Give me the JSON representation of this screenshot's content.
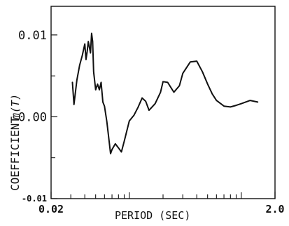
{
  "chart_data": {
    "type": "line",
    "xlabel": "PERIOD (SEC)",
    "ylabel": "COEFFICIENT",
    "ylabel_math": "m(T)",
    "x_scale": "log",
    "xlim": [
      0.02,
      2.0
    ],
    "ylim": [
      -0.01,
      0.0135
    ],
    "x_tick_labels": [
      {
        "value": 0.02,
        "label": "0.02"
      },
      {
        "value": 2.0,
        "label": "2.0"
      }
    ],
    "y_tick_labels": [
      {
        "value": 0.01,
        "label": "0.01"
      },
      {
        "value": 0.0,
        "label": "0.00"
      },
      {
        "value": -0.01,
        "label": "-0.01"
      }
    ],
    "x_minor_ticks": [
      0.03,
      0.04,
      0.05,
      0.06,
      0.07,
      0.08,
      0.09,
      0.1,
      0.2,
      0.3,
      0.4,
      0.5,
      0.6,
      0.7,
      0.8,
      0.9,
      1.0
    ],
    "y_minor_ticks": [
      0.005,
      -0.005
    ],
    "grid": false,
    "series": [
      {
        "x": [
          0.031,
          0.032,
          0.034,
          0.036,
          0.038,
          0.04,
          0.041,
          0.042,
          0.043,
          0.045,
          0.046,
          0.047,
          0.048,
          0.05,
          0.052,
          0.054,
          0.056,
          0.058,
          0.06,
          0.063,
          0.065,
          0.068,
          0.07,
          0.075,
          0.08,
          0.085,
          0.09,
          0.1,
          0.11,
          0.12,
          0.13,
          0.14,
          0.15,
          0.17,
          0.19,
          0.2,
          0.22,
          0.25,
          0.28,
          0.3,
          0.35,
          0.4,
          0.45,
          0.5,
          0.55,
          0.6,
          0.7,
          0.8,
          0.9,
          1.0,
          1.2,
          1.4
        ],
        "y": [
          0.0042,
          0.0015,
          0.0045,
          0.0063,
          0.0075,
          0.0089,
          0.007,
          0.008,
          0.0092,
          0.0078,
          0.0102,
          0.0092,
          0.0055,
          0.0033,
          0.004,
          0.0033,
          0.0042,
          0.0018,
          0.0013,
          -0.0006,
          -0.0022,
          -0.0045,
          -0.004,
          -0.0033,
          -0.0038,
          -0.0043,
          -0.003,
          -0.0005,
          0.0002,
          0.0012,
          0.0023,
          0.0019,
          0.0008,
          0.0016,
          0.003,
          0.0043,
          0.0042,
          0.003,
          0.0038,
          0.0053,
          0.0067,
          0.0068,
          0.0055,
          0.004,
          0.0028,
          0.002,
          0.0013,
          0.0012,
          0.0014,
          0.0016,
          0.002,
          0.0018
        ]
      }
    ]
  }
}
